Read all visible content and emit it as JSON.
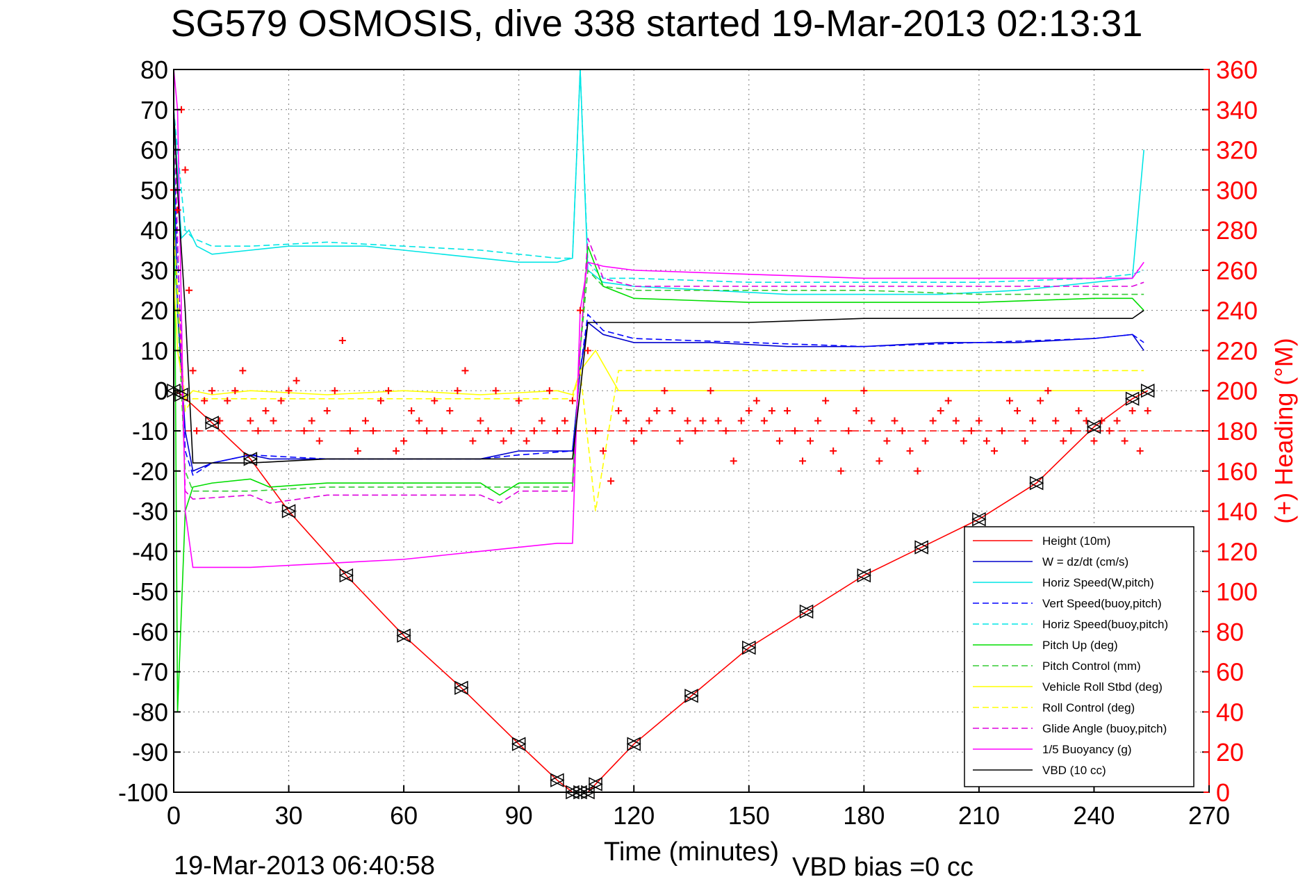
{
  "chart_data": {
    "type": "line",
    "title": "SG579 OSMOSIS, dive 338 started 19-Mar-2013 02:13:31",
    "xlabel": "Time (minutes)",
    "ylabel_right": "(+) Heading (°M)",
    "footer_left": "19-Mar-2013 06:40:58",
    "footer_right": "VBD bias =0 cc",
    "xlim": [
      0,
      270
    ],
    "ylim": [
      -100,
      80
    ],
    "y2lim": [
      0,
      360
    ],
    "xticks": [
      0,
      30,
      60,
      90,
      120,
      150,
      180,
      210,
      240,
      270
    ],
    "yticks": [
      80,
      70,
      60,
      50,
      40,
      30,
      20,
      10,
      0,
      -10,
      -20,
      -30,
      -40,
      -50,
      -60,
      -70,
      -80,
      -90,
      -100
    ],
    "y2ticks": [
      360,
      340,
      320,
      300,
      280,
      260,
      240,
      220,
      200,
      180,
      160,
      140,
      120,
      100,
      80,
      60,
      40,
      20,
      0
    ],
    "grid": true,
    "legend_position": "bottom-right",
    "heading_reference": {
      "value": 180,
      "color": "#ff0000"
    },
    "series": [
      {
        "name": "Height (10m)",
        "color": "#ff0000",
        "dash": "solid",
        "x": [
          0,
          2,
          10,
          20,
          30,
          45,
          60,
          75,
          90,
          100,
          104,
          106,
          108,
          110,
          120,
          135,
          150,
          165,
          180,
          195,
          210,
          225,
          240,
          250,
          254
        ],
        "y": [
          0,
          -1,
          -8,
          -17,
          -30,
          -46,
          -61,
          -74,
          -88,
          -97,
          -100,
          -100,
          -100,
          -98,
          -88,
          -76,
          -64,
          -55,
          -46,
          -39,
          -32,
          -23,
          -9,
          -2,
          0
        ]
      },
      {
        "name": "W = dz/dt (cm/s)",
        "color": "#0000cc",
        "dash": "solid",
        "x": [
          0,
          1,
          3,
          5,
          10,
          20,
          25,
          40,
          60,
          80,
          85,
          90,
          104,
          106,
          108,
          112,
          120,
          140,
          160,
          180,
          200,
          220,
          240,
          250,
          253
        ],
        "y": [
          60,
          20,
          -10,
          -20,
          -18,
          -16,
          -17,
          -17,
          -17,
          -17,
          -16,
          -15,
          -15,
          5,
          17,
          14,
          12,
          12,
          11,
          11,
          12,
          12,
          13,
          14,
          10
        ]
      },
      {
        "name": "Horiz Speed(W,pitch)",
        "color": "#00e5e5",
        "dash": "solid",
        "x": [
          0,
          2,
          4,
          6,
          10,
          20,
          30,
          40,
          50,
          60,
          70,
          80,
          90,
          100,
          104,
          106,
          108,
          112,
          120,
          140,
          160,
          180,
          200,
          220,
          240,
          250,
          253
        ],
        "y": [
          70,
          38,
          40,
          36,
          34,
          35,
          36,
          36,
          36,
          35,
          34,
          33,
          32,
          32,
          33,
          80,
          30,
          27,
          26,
          25,
          24,
          24,
          24,
          25,
          27,
          28,
          60
        ]
      },
      {
        "name": "Vert Speed(buoy,pitch)",
        "color": "#0000ff",
        "dash": "dashed",
        "x": [
          0,
          3,
          5,
          10,
          20,
          40,
          60,
          80,
          90,
          104,
          106,
          108,
          112,
          120,
          150,
          180,
          210,
          240,
          250,
          253
        ],
        "y": [
          60,
          -15,
          -21,
          -18,
          -16,
          -17,
          -17,
          -17,
          -16,
          -15,
          5,
          19,
          15,
          13,
          12,
          11,
          12,
          13,
          14,
          12
        ]
      },
      {
        "name": "Horiz Speed(buoy,pitch)",
        "color": "#00e5e5",
        "dash": "dashed",
        "x": [
          0,
          3,
          5,
          10,
          20,
          40,
          60,
          80,
          100,
          104,
          106,
          108,
          112,
          120,
          150,
          180,
          210,
          240,
          250,
          253
        ],
        "y": [
          70,
          40,
          38,
          36,
          36,
          37,
          36,
          35,
          33,
          33,
          80,
          32,
          28,
          28,
          27,
          27,
          27,
          28,
          29,
          30
        ]
      },
      {
        "name": "Pitch Up (deg)",
        "color": "#00dd00",
        "dash": "solid",
        "x": [
          0,
          1,
          3,
          5,
          10,
          20,
          25,
          40,
          60,
          80,
          85,
          90,
          104,
          106,
          108,
          112,
          120,
          150,
          180,
          210,
          240,
          250,
          253
        ],
        "y": [
          70,
          -80,
          -30,
          -24,
          -23,
          -22,
          -24,
          -23,
          -23,
          -23,
          -26,
          -23,
          -23,
          10,
          36,
          26,
          23,
          22,
          22,
          22,
          23,
          23,
          20
        ]
      },
      {
        "name": "Pitch Control (mm)",
        "color": "#33cc33",
        "dash": "dashed",
        "x": [
          0,
          3,
          5,
          20,
          40,
          60,
          80,
          100,
          104,
          106,
          108,
          112,
          120,
          150,
          180,
          210,
          240,
          250,
          253
        ],
        "y": [
          40,
          -20,
          -25,
          -25,
          -24,
          -24,
          -24,
          -24,
          -24,
          10,
          30,
          26,
          25,
          25,
          25,
          24,
          24,
          24,
          24
        ]
      },
      {
        "name": "Vehicle Roll Stbd (deg)",
        "color": "#ffff00",
        "dash": "solid",
        "x": [
          0,
          1,
          3,
          5,
          10,
          20,
          40,
          60,
          80,
          100,
          104,
          106,
          110,
          116,
          120,
          150,
          180,
          210,
          240,
          250,
          253
        ],
        "y": [
          30,
          10,
          -2,
          0,
          -1,
          0,
          -1,
          0,
          -1,
          0,
          -1,
          5,
          10,
          0,
          0,
          0,
          0,
          0,
          0,
          0,
          0
        ]
      },
      {
        "name": "Roll Control (deg)",
        "color": "#ffff00",
        "dash": "dashed",
        "x": [
          0,
          3,
          5,
          10,
          20,
          40,
          60,
          80,
          100,
          104,
          106,
          110,
          116,
          120,
          150,
          180,
          210,
          240,
          250,
          253
        ],
        "y": [
          40,
          -5,
          -2,
          -2,
          -2,
          -2,
          -2,
          -2,
          -2,
          -2,
          5,
          -30,
          5,
          5,
          5,
          5,
          5,
          5,
          5,
          5
        ]
      },
      {
        "name": "Glide Angle (buoy,pitch)",
        "color": "#dd00dd",
        "dash": "dashed",
        "x": [
          0,
          3,
          5,
          20,
          25,
          40,
          60,
          80,
          85,
          90,
          100,
          104,
          106,
          108,
          112,
          120,
          150,
          180,
          210,
          240,
          250,
          253
        ],
        "y": [
          70,
          -25,
          -27,
          -26,
          -28,
          -26,
          -26,
          -26,
          -28,
          -25,
          -25,
          -25,
          10,
          38,
          28,
          26,
          26,
          26,
          26,
          26,
          26,
          27
        ]
      },
      {
        "name": "1/5 Buoyancy (g)",
        "color": "#ff00ff",
        "dash": "solid",
        "x": [
          0,
          1,
          2,
          3,
          5,
          20,
          40,
          60,
          80,
          100,
          104,
          106,
          108,
          112,
          120,
          150,
          180,
          210,
          240,
          250,
          253
        ],
        "y": [
          80,
          70,
          20,
          -30,
          -44,
          -44,
          -43,
          -42,
          -40,
          -38,
          -38,
          20,
          32,
          31,
          30,
          29,
          28,
          28,
          28,
          28,
          32
        ]
      },
      {
        "name": "VBD (10 cc)",
        "color": "#000000",
        "dash": "solid",
        "x": [
          0,
          1,
          3,
          5,
          10,
          20,
          40,
          60,
          80,
          100,
          104,
          106,
          108,
          112,
          120,
          150,
          180,
          210,
          240,
          250,
          253
        ],
        "y": [
          70,
          50,
          20,
          -18,
          -18,
          -18,
          -17,
          -17,
          -17,
          -17,
          -17,
          0,
          17,
          17,
          17,
          17,
          18,
          18,
          18,
          18,
          20
        ]
      }
    ],
    "heading": {
      "name": "Heading",
      "color": "#ff0000",
      "axis": "right",
      "marker": "+",
      "x": [
        0,
        1,
        2,
        3,
        4,
        5,
        6,
        8,
        10,
        12,
        14,
        16,
        18,
        20,
        22,
        24,
        26,
        28,
        30,
        32,
        34,
        36,
        38,
        40,
        42,
        44,
        46,
        48,
        50,
        52,
        54,
        56,
        58,
        60,
        62,
        64,
        66,
        68,
        70,
        72,
        74,
        76,
        78,
        80,
        82,
        84,
        86,
        88,
        90,
        92,
        94,
        96,
        98,
        100,
        102,
        104,
        106,
        108,
        110,
        112,
        114,
        116,
        118,
        120,
        122,
        124,
        126,
        128,
        130,
        132,
        134,
        136,
        138,
        140,
        142,
        144,
        146,
        148,
        150,
        152,
        154,
        156,
        158,
        160,
        162,
        164,
        166,
        168,
        170,
        172,
        174,
        176,
        178,
        180,
        182,
        184,
        186,
        188,
        190,
        192,
        194,
        196,
        198,
        200,
        202,
        204,
        206,
        208,
        210,
        212,
        214,
        216,
        218,
        220,
        222,
        224,
        226,
        228,
        230,
        232,
        234,
        236,
        238,
        240,
        242,
        244,
        246,
        248,
        250,
        252,
        254
      ],
      "y": [
        300,
        290,
        340,
        310,
        250,
        210,
        180,
        195,
        200,
        185,
        195,
        200,
        210,
        185,
        180,
        190,
        185,
        195,
        200,
        205,
        180,
        185,
        175,
        190,
        200,
        225,
        180,
        170,
        185,
        180,
        195,
        200,
        170,
        175,
        190,
        185,
        180,
        195,
        180,
        190,
        200,
        210,
        175,
        185,
        180,
        200,
        175,
        180,
        195,
        175,
        180,
        185,
        200,
        180,
        185,
        195,
        240,
        220,
        180,
        170,
        155,
        190,
        185,
        175,
        180,
        185,
        190,
        200,
        190,
        175,
        185,
        180,
        185,
        200,
        185,
        180,
        165,
        185,
        190,
        195,
        185,
        190,
        175,
        190,
        180,
        165,
        175,
        185,
        195,
        170,
        160,
        180,
        190,
        200,
        185,
        165,
        175,
        185,
        180,
        170,
        160,
        175,
        185,
        190,
        195,
        185,
        175,
        180,
        185,
        175,
        170,
        180,
        195,
        190,
        175,
        185,
        195,
        200,
        185,
        175,
        180,
        190,
        185,
        175,
        185,
        180,
        185,
        175,
        190,
        170,
        190
      ]
    }
  }
}
